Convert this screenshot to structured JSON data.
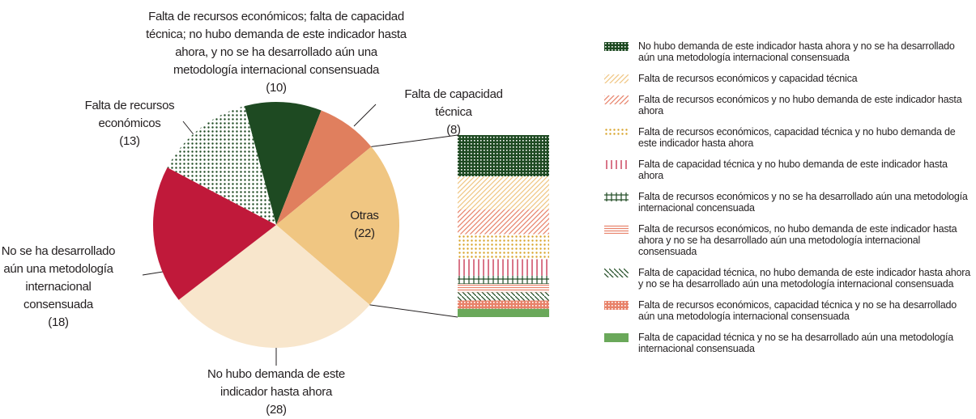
{
  "chart_data": {
    "type": "pie",
    "categories": [
      "Falta de recursos económicos; falta de capacidad técnica; no hubo demanda de este indicador hasta ahora, y no se ha desarrollado aún una metodología internacional consensuada",
      "Falta de capacidad técnica",
      "Otras",
      "No hubo demanda de este indicador hasta ahora",
      "No se ha desarrollado aún una metodología internacional consensuada",
      "Falta de recursos económicos"
    ],
    "values": [
      10,
      8,
      22,
      28,
      18,
      13
    ],
    "value_labels": [
      "(10)",
      "(8)",
      "(22)",
      "(28)",
      "(18)",
      "(13)"
    ],
    "colors": [
      "#1e4a22",
      "#e07f5e",
      "#f0c682",
      "#f8e6cc",
      "#c0193a",
      "#1e4a22"
    ],
    "patterns": [
      "solid",
      "solid",
      "solid",
      "solid",
      "solid",
      "dots"
    ],
    "breakdown": {
      "type": "bar",
      "categories": [
        "No hubo demanda de este indicador hasta ahora y no se ha desarrollado aún una metodología internacional consensuada",
        "Falta de recursos económicos y capacidad técnica",
        "Falta de recursos económicos y no hubo demanda de este indicador hasta ahora",
        "Falta de recursos económicos, capacidad técnica y no hubo demanda de este indicador hasta ahora",
        "Falta de capacidad técnica y no hubo demanda de este indicador hasta ahora",
        "Falta de recursos económicos y no se ha desarrollado aún una metodología  internacional concensuada",
        "Falta de recursos económicos, no hubo demanda de este indicador hasta ahora y no se ha desarrollado aún una metodología internacional consensuada",
        "Falta de capacidad técnica, no hubo demanda de este indicador hasta ahora y no se ha desarrollado aún una metodología internacional consensuada",
        "Falta de recursos económicos, capacidad técnica y no se ha desarrollado aún una metodología internacional consensuada",
        "Falta de capacidad técnica y no se ha desarrollado aún una metodología  internacional consensuada"
      ],
      "values": [
        5,
        4,
        3,
        3,
        2,
        1,
        1,
        1,
        1,
        1
      ],
      "colors": [
        "#1e4a22",
        "#f0c682",
        "#e8826a",
        "#d9a42b",
        "#c0193a",
        "#1e4a22",
        "#e8826a",
        "#1e4a22",
        "#e8826a",
        "#6aa85a"
      ],
      "patterns": [
        "grid",
        "diagonal",
        "diagonal",
        "dots",
        "vertical",
        "ticks",
        "horizontal",
        "backdiag",
        "grid",
        "solid"
      ]
    }
  }
}
